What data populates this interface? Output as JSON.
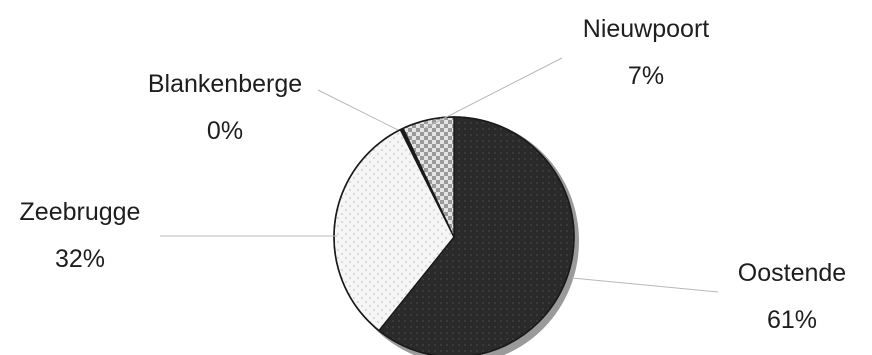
{
  "chart_data": {
    "type": "pie",
    "title": "",
    "slices": [
      {
        "name": "Oostende",
        "value": 61,
        "value_label": "61%",
        "fill": "#2a2a2a"
      },
      {
        "name": "Zeebrugge",
        "value": 32,
        "value_label": "32%",
        "fill": "#f3f3f3"
      },
      {
        "name": "Blankenberge",
        "value": 0.4,
        "value_label": "0%",
        "fill": "#1a1a1a"
      },
      {
        "name": "Nieuwpoort",
        "value": 7,
        "value_label": "7%",
        "fill": "#d6d6d6"
      }
    ],
    "legend": "none",
    "label_style": "name and percentage outside with leader lines"
  }
}
